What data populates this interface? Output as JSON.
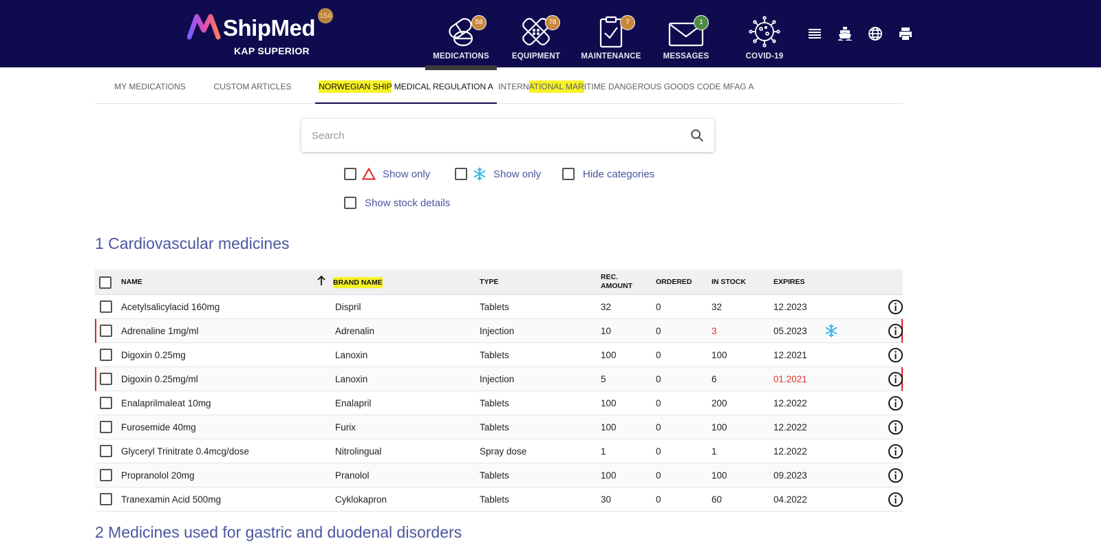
{
  "brand": {
    "name": "ShipMed",
    "vessel": "KAP SUPERIOR",
    "badge": "154"
  },
  "nav": [
    {
      "label": "MEDICATIONS",
      "badge": "58",
      "icon": "pills-icon",
      "badge_color": "#c8873a"
    },
    {
      "label": "EQUIPMENT",
      "badge": "78",
      "icon": "bandage-icon",
      "badge_color": "#c8873a"
    },
    {
      "label": "MAINTENANCE",
      "badge": "7",
      "icon": "clipboard-check-icon",
      "badge_color": "#c8873a"
    },
    {
      "label": "MESSAGES",
      "badge": "1",
      "icon": "envelope-icon",
      "badge_color": "#4f8a45"
    },
    {
      "label": "COVID-19",
      "badge": "",
      "icon": "virus-icon"
    }
  ],
  "utility_icons": [
    "list-icon",
    "ship-icon",
    "globe-icon",
    "print-icon"
  ],
  "tabs": [
    {
      "label_plain": "MY MEDICATIONS"
    },
    {
      "label_plain": "CUSTOM ARTICLES"
    },
    {
      "label_pre": "",
      "label_hl": "NORWEGIAN SHIP",
      "label_post": " MEDICAL REGULATION A"
    },
    {
      "label_pre": "INTERN",
      "label_hl": "ATIONAL MAR",
      "label_post": "ITIME DANGEROUS GOODS CODE MFAG A"
    }
  ],
  "search": {
    "placeholder": "Search"
  },
  "filters": {
    "hazard_show_only": "Show only",
    "cold_show_only": "Show only",
    "hide_categories": "Hide categories",
    "show_stock_details": "Show stock details"
  },
  "sections": [
    {
      "title": "1 Cardiovascular medicines"
    },
    {
      "title": "2 Medicines used for gastric and duodenal disorders"
    }
  ],
  "table": {
    "headers": {
      "name": "NAME",
      "brand": "BRAND NAME",
      "type": "TYPE",
      "rec_line1": "REC.",
      "rec_line2": "AMOUNT",
      "ordered": "ORDERED",
      "in_stock": "IN STOCK",
      "expires": "EXPIRES"
    },
    "rows": [
      {
        "name": "Acetylsalicylacid 160mg",
        "brand": "Dispril",
        "type": "Tablets",
        "rec": "32",
        "ordered": "0",
        "in_stock": "32",
        "expires": "12.2023"
      },
      {
        "name": "Adrenaline 1mg/ml",
        "brand": "Adrenalin",
        "type": "Injection",
        "rec": "10",
        "ordered": "0",
        "in_stock": "3",
        "expires": "05.2023"
      },
      {
        "name": "Digoxin 0.25mg",
        "brand": "Lanoxin",
        "type": "Tablets",
        "rec": "100",
        "ordered": "0",
        "in_stock": "100",
        "expires": "12.2021"
      },
      {
        "name": "Digoxin 0.25mg/ml",
        "brand": "Lanoxin",
        "type": "Injection",
        "rec": "5",
        "ordered": "0",
        "in_stock": "6",
        "expires": "01.2021"
      },
      {
        "name": "Enalaprilmaleat 10mg",
        "brand": "Enalapril",
        "type": "Tablets",
        "rec": "100",
        "ordered": "0",
        "in_stock": "200",
        "expires": "12.2022"
      },
      {
        "name": "Furosemide 40mg",
        "brand": "Furix",
        "type": "Tablets",
        "rec": "100",
        "ordered": "0",
        "in_stock": "100",
        "expires": "12.2022"
      },
      {
        "name": "Glyceryl Trinitrate 0.4mcg/dose",
        "brand": "Nitrolingual",
        "type": "Spray dose",
        "rec": "1",
        "ordered": "0",
        "in_stock": "1",
        "expires": "12.2022"
      },
      {
        "name": "Propranolol 20mg",
        "brand": "Pranolol",
        "type": "Tablets",
        "rec": "100",
        "ordered": "0",
        "in_stock": "100",
        "expires": "09.2023"
      },
      {
        "name": "Tranexamin Acid 500mg",
        "brand": "Cyklokapron",
        "type": "Tablets",
        "rec": "30",
        "ordered": "0",
        "in_stock": "60",
        "expires": "04.2022"
      }
    ]
  },
  "colors": {
    "topbar": "#0f0b4e",
    "accent_text": "#4a56a0",
    "alert_red": "#e53030",
    "highlight": "#f7f227",
    "snowflake": "#3db8ea"
  }
}
